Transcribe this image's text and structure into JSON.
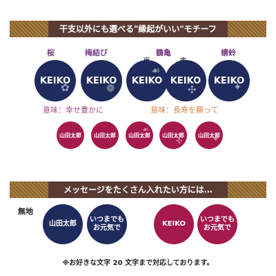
{
  "section1": {
    "title": "干支以外にも選べる\"縁起がいい\"モチーフ"
  },
  "motifs": {
    "sakura": "桜",
    "umemusubi": "梅結び",
    "tsurukame": "鶴亀",
    "ura": "裏",
    "omote": "表",
    "seirei": "蜻蛉"
  },
  "meanings": {
    "left": "意味：幸せ豊かに",
    "right": "意味：長寿を願って"
  },
  "large_texts": {
    "k1": "KEIKO",
    "k2": "KEIKO",
    "k3": "KEIKO",
    "k4": "KEIKO",
    "k5": "KEIKO"
  },
  "small_texts": {
    "s1": "山田太郎",
    "s2": "山田太郎",
    "s3": "山田太郎",
    "s4": "山田太郎",
    "s5": "山田太郎"
  },
  "section2": {
    "title": "メッセージをたくさん入れたい方には…",
    "plain_label": "無地",
    "navy_name": "山田太郎",
    "navy_message_line1": "いつまでも",
    "navy_message_line2": "お元気で",
    "crimson_name": "KEIKO",
    "crimson_message_line1": "いつまでも",
    "crimson_message_line2": "お元気で"
  },
  "footer": {
    "note": "※お好きな文字 20 文字まで対応しております。"
  },
  "colors": {
    "band": "#5a3b34",
    "navy": "#1f2b5d",
    "crimson": "#a6194b",
    "purple": "#7a3f86",
    "orange": "#d48447"
  },
  "icons": {
    "sakura": "sakura-flower-icon",
    "knot": "plum-knot-icon",
    "crane": "crane-icon",
    "turtle": "turtle-icon",
    "dragonfly": "dragonfly-icon"
  }
}
